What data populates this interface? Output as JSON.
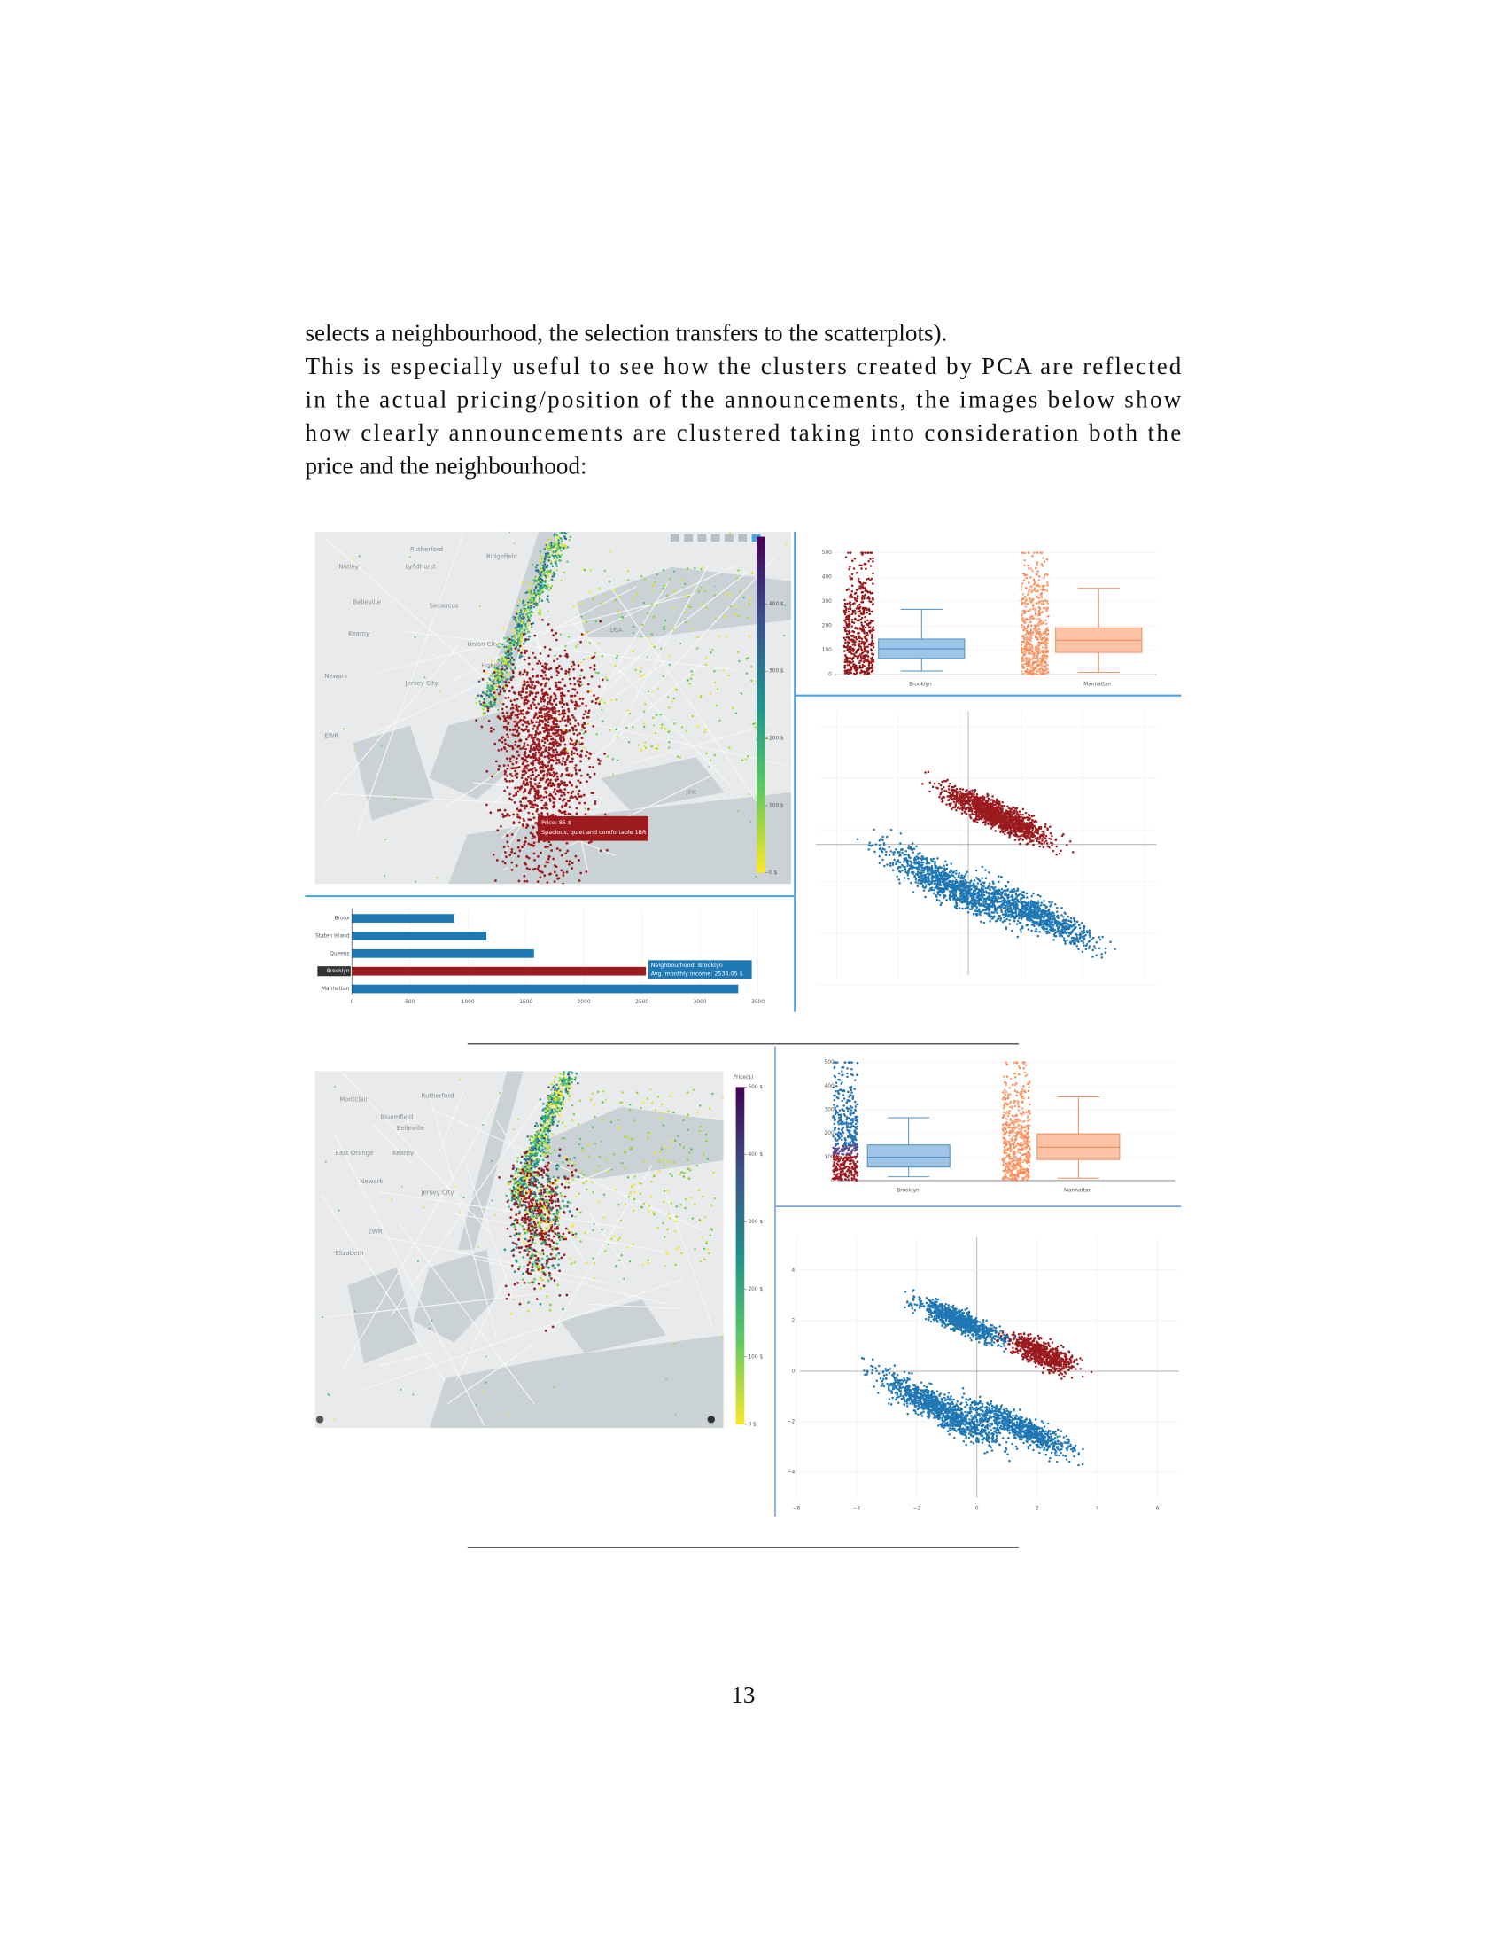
{
  "paragraph": {
    "lines": [
      "selects a neighbourhood, the selection transfers to the scatterplots).",
      "This is especially useful to see how the clusters created by PCA are reflected",
      "in the actual pricing/position of the announcements, the images below show",
      "how clearly announcements are clustered taking into consideration both the",
      "price and the neighbourhood:"
    ]
  },
  "figure_1": {
    "map": {
      "place_labels": [
        "Nutley",
        "Rutherford",
        "Lyndhurst",
        "Belleville",
        "Kearny",
        "Secaucus",
        "Union City",
        "Hoboken",
        "Ridgefield",
        "Newark",
        "Jersey City",
        "EWR",
        "LGA",
        "JFK"
      ],
      "colorbar": {
        "range": [
          0,
          500
        ],
        "ticks": [
          {
            "value": 400,
            "label": "400 $"
          },
          {
            "value": 300,
            "label": "300 $"
          },
          {
            "value": 200,
            "label": "200 $"
          },
          {
            "value": 100,
            "label": "100 $"
          },
          {
            "value": 0,
            "label": "0 $"
          }
        ]
      },
      "tooltip": {
        "price": "Price: 85  $",
        "title": "Spacious, quiet and comfortable 1BR"
      }
    },
    "boxplot": {
      "type": "box",
      "categories": [
        "Brooklyn",
        "Manhattan"
      ],
      "ylim": [
        0,
        500
      ],
      "yticks": [
        0,
        100,
        200,
        300,
        400,
        500
      ],
      "boxes": [
        {
          "lower": 15,
          "q1": 66,
          "median": 106,
          "q3": 146,
          "upper": 268
        },
        {
          "lower": 10,
          "q1": 91,
          "median": 141,
          "q3": 192,
          "upper": 354
        }
      ]
    },
    "bar": {
      "type": "bar",
      "categories": [
        "Bronx",
        "Staten Island",
        "Queens",
        "Brooklyn",
        "Manhattan"
      ],
      "values": [
        880,
        1160,
        1570,
        2534.05,
        3330
      ],
      "colors": [
        "#1f77b4",
        "#1f77b4",
        "#1f77b4",
        "#9b1b1e",
        "#1f77b4"
      ],
      "xlim": [
        0,
        3500
      ],
      "xticks": [
        0,
        500,
        1000,
        1500,
        2000,
        2500,
        3000,
        3500
      ],
      "tooltip": {
        "name": "Neighbourhood: Brooklyn",
        "value": "Avg. monthly income: 2534.05 $"
      }
    }
  },
  "figure_2": {
    "map": {
      "place_labels": [
        "Montclair",
        "Bloomfield",
        "Rutherford",
        "Belleville",
        "East Orange",
        "Kearny",
        "Newark",
        "Jersey City",
        "EWR",
        "Elizabeth"
      ],
      "colorbar": {
        "title": "Price($)",
        "range": [
          0,
          500
        ],
        "ticks": [
          {
            "value": 500,
            "label": "500 $"
          },
          {
            "value": 400,
            "label": "400 $"
          },
          {
            "value": 300,
            "label": "300 $"
          },
          {
            "value": 200,
            "label": "200 $"
          },
          {
            "value": 100,
            "label": "100 $"
          },
          {
            "value": 0,
            "label": "0 $"
          }
        ]
      }
    },
    "boxplot": {
      "type": "box",
      "categories": [
        "Brooklyn",
        "Manhattan"
      ],
      "ylim": [
        0,
        500
      ],
      "yticks": [
        0,
        100,
        200,
        300,
        400,
        500
      ],
      "boxes": [
        {
          "lower": 16,
          "q1": 57,
          "median": 99,
          "q3": 151,
          "upper": 266
        },
        {
          "lower": 10,
          "q1": 89,
          "median": 141,
          "q3": 198,
          "upper": 354
        }
      ]
    },
    "scatter": {
      "type": "scatter",
      "xlim": [
        -6.3,
        6.3
      ],
      "ylim": [
        -5,
        5.3
      ],
      "xticks": [
        {
          "value": -6,
          "label": "−6"
        },
        {
          "value": -4,
          "label": "−4"
        },
        {
          "value": -2,
          "label": "−2"
        },
        0,
        2,
        4,
        6
      ],
      "yticks": [
        {
          "value": -4,
          "label": "−4"
        },
        {
          "value": -2,
          "label": "−2"
        },
        0,
        2,
        4
      ]
    }
  },
  "page_number": "13"
}
